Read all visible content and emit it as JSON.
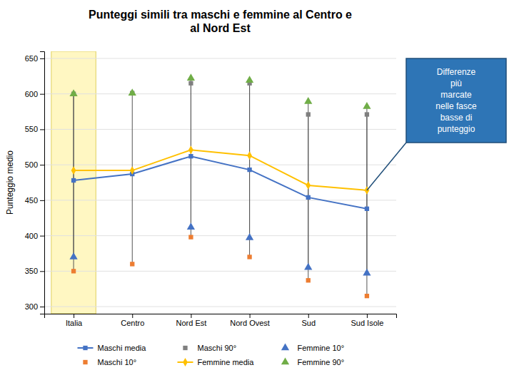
{
  "chart_data": {
    "type": "line",
    "title": "Punteggi simili tra maschi e femmine al Centro e\nal Nord Est",
    "y_label": "Punteggio medio",
    "annotation": "Differenze\npiù\nmarcate\nnelle fasce\nbasse di\npunteggio",
    "categories": [
      "Italia",
      "Centro",
      "Nord Est",
      "Nord Ovest",
      "Sud",
      "Sud Isole"
    ],
    "series": [
      {
        "name": "Maschi media",
        "type": "line",
        "marker": "square",
        "color": "#4472c4",
        "values": [
          478,
          487,
          512,
          493,
          454,
          438
        ]
      },
      {
        "name": "Maschi 10°",
        "type": "scatter",
        "marker": "square",
        "color": "#ed7d31",
        "values": [
          350,
          360,
          398,
          370,
          337,
          315
        ]
      },
      {
        "name": "Maschi 90°",
        "type": "scatter",
        "marker": "square",
        "color": "#7f7f7f",
        "values": [
          600,
          601,
          615,
          615,
          571,
          571
        ]
      },
      {
        "name": "Femmine media",
        "type": "line",
        "marker": "diamond",
        "color": "#ffc000",
        "values": [
          492,
          492,
          521,
          513,
          471,
          464
        ]
      },
      {
        "name": "Femmine 10°",
        "type": "scatter",
        "marker": "triangle",
        "color": "#4472c4",
        "values": [
          370,
          null,
          412,
          397,
          355,
          347
        ]
      },
      {
        "name": "Femmine 90°",
        "type": "scatter",
        "marker": "triangle",
        "color": "#70ad47",
        "values": [
          600,
          601,
          622,
          619,
          589,
          582
        ]
      }
    ],
    "ylim": [
      290,
      660
    ],
    "yticks": [
      300,
      350,
      400,
      450,
      500,
      550,
      600,
      650
    ],
    "grid": true,
    "legend": "bottom"
  }
}
